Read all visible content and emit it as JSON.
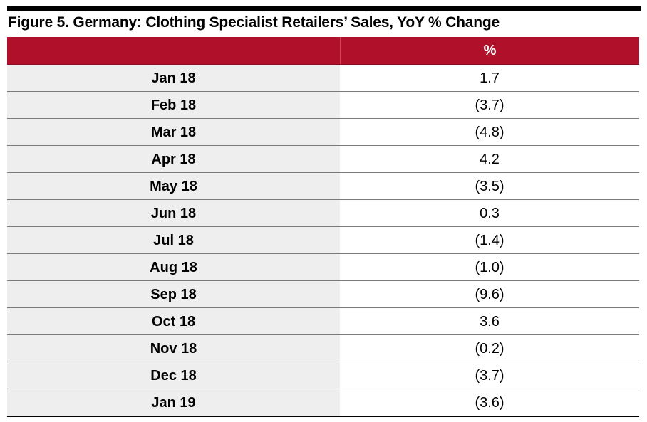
{
  "title": "Figure 5. Germany: Clothing Specialist Retailers’ Sales, YoY % Change",
  "colors": {
    "header_bg": "#b01029",
    "label_bg": "#eeeeee"
  },
  "chart_data": {
    "type": "table",
    "title": "Figure 5. Germany: Clothing Specialist Retailers’ Sales, YoY % Change",
    "columns": [
      "",
      "%"
    ],
    "rows": [
      {
        "label": "Jan 18",
        "value": "1.7"
      },
      {
        "label": "Feb 18",
        "value": "(3.7)"
      },
      {
        "label": "Mar 18",
        "value": "(4.8)"
      },
      {
        "label": "Apr 18",
        "value": "4.2"
      },
      {
        "label": "May 18",
        "value": "(3.5)"
      },
      {
        "label": "Jun 18",
        "value": "0.3"
      },
      {
        "label": "Jul 18",
        "value": "(1.4)"
      },
      {
        "label": "Aug 18",
        "value": "(1.0)"
      },
      {
        "label": "Sep 18",
        "value": "(9.6)"
      },
      {
        "label": "Oct 18",
        "value": "3.6"
      },
      {
        "label": "Nov 18",
        "value": "(0.2)"
      },
      {
        "label": "Dec 18",
        "value": "(3.7)"
      },
      {
        "label": "Jan 19",
        "value": "(3.6)"
      }
    ]
  }
}
